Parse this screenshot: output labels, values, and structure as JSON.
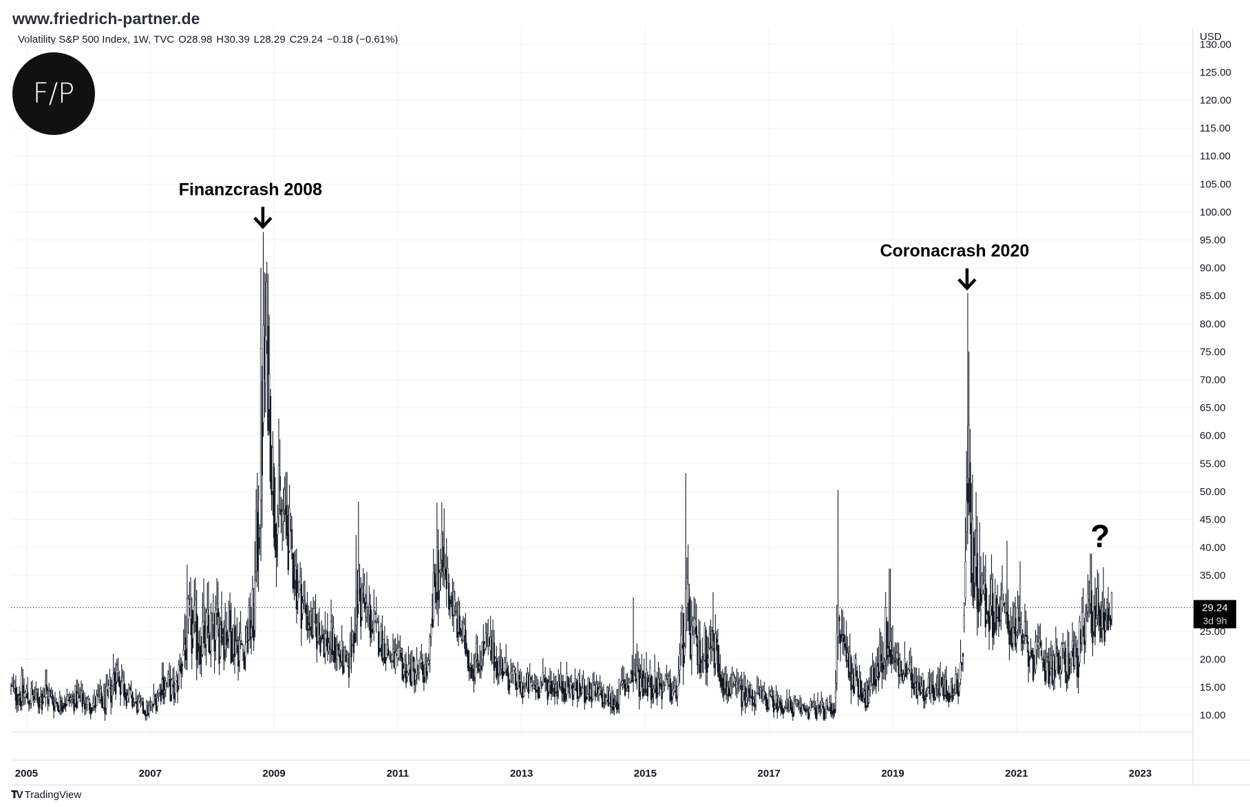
{
  "header": {
    "site_url": "www.friedrich-partner.de",
    "logo_text": "F/P"
  },
  "legend": {
    "instrument": "Volatility S&P 500 Index, 1W, TVC",
    "open": "O28.98",
    "high": "H30.39",
    "low": "L28.29",
    "close": "C29.24",
    "change": "−0.18 (−0.61%)"
  },
  "price_tag": {
    "value": "29.24",
    "countdown": "3d 9h"
  },
  "footer": {
    "brand": "TradingView"
  },
  "colors": {
    "candles": "#131722",
    "grid": "#f0f3fa",
    "dotted_line": "#333333",
    "tag_bg": "#000000"
  },
  "chart_data": {
    "type": "candlestick",
    "title": "",
    "xlabel": "",
    "ylabel": "",
    "yunit": "USD",
    "ylim": [
      7,
      133
    ],
    "xlim": [
      2004.75,
      2023.85
    ],
    "x_ticks": [
      "2005",
      "2007",
      "2009",
      "2011",
      "2013",
      "2015",
      "2017",
      "2019",
      "2021",
      "2023"
    ],
    "y_ticks": [
      "130.00",
      "125.00",
      "120.00",
      "115.00",
      "110.00",
      "105.00",
      "100.00",
      "95.00",
      "90.00",
      "85.00",
      "80.00",
      "75.00",
      "70.00",
      "65.00",
      "60.00",
      "55.00",
      "50.00",
      "45.00",
      "40.00",
      "35.00",
      "30.00",
      "25.00",
      "20.00",
      "15.00",
      "10.00"
    ],
    "grid": true,
    "current_price": 29.24,
    "annotations": [
      {
        "text": "Finanzcrash 2008",
        "x": 2008.82,
        "y": 96
      },
      {
        "text": "Coronacrash 2020",
        "x": 2020.2,
        "y": 85
      },
      {
        "text": "?",
        "x": 2022.35,
        "y": 44
      }
    ],
    "series": [
      {
        "name": "Volatility S&P 500 Index",
        "anchors": [
          [
            2004.75,
            14.5,
            3
          ],
          [
            2004.9,
            14,
            5
          ],
          [
            2005.2,
            12.5,
            3
          ],
          [
            2005.3,
            14,
            5
          ],
          [
            2005.5,
            12,
            2.5
          ],
          [
            2005.8,
            13,
            3.5
          ],
          [
            2006.0,
            12,
            3
          ],
          [
            2006.3,
            12.5,
            4
          ],
          [
            2006.45,
            18,
            6
          ],
          [
            2006.7,
            12.5,
            3
          ],
          [
            2006.9,
            11,
            2.5
          ],
          [
            2007.0,
            11,
            2.5
          ],
          [
            2007.2,
            16,
            5
          ],
          [
            2007.4,
            14,
            4
          ],
          [
            2007.6,
            25,
            9
          ],
          [
            2007.9,
            24,
            9
          ],
          [
            2008.2,
            26,
            9
          ],
          [
            2008.5,
            22,
            6
          ],
          [
            2008.68,
            28,
            9
          ],
          [
            2008.8,
            63,
            28
          ],
          [
            2008.88,
            78,
            18
          ],
          [
            2009.0,
            48,
            14
          ],
          [
            2009.2,
            44,
            10
          ],
          [
            2009.4,
            32,
            8
          ],
          [
            2009.6,
            26,
            6
          ],
          [
            2010.0,
            22,
            6
          ],
          [
            2010.2,
            18,
            4
          ],
          [
            2010.35,
            32,
            12
          ],
          [
            2010.6,
            26,
            6
          ],
          [
            2010.9,
            20,
            4
          ],
          [
            2011.2,
            18,
            5
          ],
          [
            2011.5,
            18,
            4
          ],
          [
            2011.62,
            37,
            11
          ],
          [
            2011.8,
            34,
            9
          ],
          [
            2011.95,
            27,
            6
          ],
          [
            2012.2,
            19,
            5
          ],
          [
            2012.45,
            22,
            6
          ],
          [
            2012.8,
            17,
            4
          ],
          [
            2013.0,
            15,
            3.5
          ],
          [
            2013.5,
            15.5,
            4
          ],
          [
            2014.0,
            14.5,
            3.5
          ],
          [
            2014.5,
            12.5,
            3.5
          ],
          [
            2014.8,
            17,
            6
          ],
          [
            2015.0,
            16.5,
            5
          ],
          [
            2015.5,
            14,
            3.5
          ],
          [
            2015.65,
            28,
            12
          ],
          [
            2015.85,
            21,
            6
          ],
          [
            2016.1,
            23,
            7
          ],
          [
            2016.3,
            15,
            4
          ],
          [
            2016.6,
            14,
            4
          ],
          [
            2016.9,
            13,
            3
          ],
          [
            2017.3,
            11.5,
            2.5
          ],
          [
            2017.7,
            11,
            2.5
          ],
          [
            2018.05,
            11,
            2.5
          ],
          [
            2018.12,
            25,
            12
          ],
          [
            2018.3,
            19,
            6
          ],
          [
            2018.6,
            13,
            3.5
          ],
          [
            2018.9,
            24,
            9
          ],
          [
            2019.1,
            18,
            5
          ],
          [
            2019.5,
            15,
            4
          ],
          [
            2019.8,
            15,
            4
          ],
          [
            2020.0,
            14,
            3
          ],
          [
            2020.13,
            20,
            8
          ],
          [
            2020.22,
            55,
            24
          ],
          [
            2020.3,
            38,
            12
          ],
          [
            2020.5,
            30,
            8
          ],
          [
            2020.8,
            28,
            7
          ],
          [
            2021.0,
            25,
            7
          ],
          [
            2021.3,
            20,
            6
          ],
          [
            2021.7,
            19,
            6
          ],
          [
            2022.0,
            21,
            7
          ],
          [
            2022.2,
            29,
            9
          ],
          [
            2022.4,
            27,
            7
          ],
          [
            2022.55,
            29,
            5
          ]
        ],
        "spikes": [
          [
            2008.82,
            96.4
          ],
          [
            2008.86,
            81.5
          ],
          [
            2008.91,
            81.2
          ],
          [
            2009.2,
            53.5
          ],
          [
            2010.36,
            48.2
          ],
          [
            2011.64,
            48.0
          ],
          [
            2011.75,
            47.0
          ],
          [
            2014.8,
            31.1
          ],
          [
            2015.65,
            53.3
          ],
          [
            2015.75,
            30.5
          ],
          [
            2016.1,
            32.0
          ],
          [
            2018.11,
            50.3
          ],
          [
            2018.95,
            36.2
          ],
          [
            2020.21,
            85.5
          ],
          [
            2020.4,
            44.5
          ],
          [
            2020.85,
            41.2
          ],
          [
            2021.05,
            37.5
          ],
          [
            2022.2,
            38.9
          ],
          [
            2022.4,
            36.5
          ]
        ]
      }
    ]
  }
}
